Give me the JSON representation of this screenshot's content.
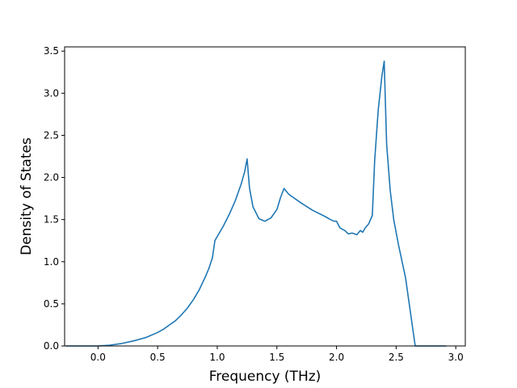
{
  "chart_data": {
    "type": "line",
    "title": "",
    "xlabel": "Frequency (THz)",
    "ylabel": "Density of States",
    "xlim": [
      -0.28,
      3.08
    ],
    "ylim": [
      0.0,
      3.55
    ],
    "grid": false,
    "legend": "none",
    "x_ticks": [
      "0.0",
      "0.5",
      "1.0",
      "1.5",
      "2.0",
      "2.5",
      "3.0"
    ],
    "y_ticks": [
      "0.0",
      "0.5",
      "1.0",
      "1.5",
      "2.0",
      "2.5",
      "3.0",
      "3.5"
    ],
    "series": [
      {
        "color": "#1f77b4",
        "x": [
          -0.27,
          -0.2,
          -0.1,
          0.0,
          0.1,
          0.2,
          0.3,
          0.4,
          0.5,
          0.55,
          0.6,
          0.65,
          0.7,
          0.75,
          0.8,
          0.85,
          0.9,
          0.93,
          0.96,
          0.98,
          1.0,
          1.05,
          1.1,
          1.15,
          1.2,
          1.23,
          1.25,
          1.27,
          1.3,
          1.35,
          1.4,
          1.45,
          1.5,
          1.53,
          1.56,
          1.6,
          1.7,
          1.8,
          1.9,
          1.95,
          1.98,
          2.0,
          2.03,
          2.07,
          2.1,
          2.13,
          2.17,
          2.2,
          2.22,
          2.24,
          2.27,
          2.3,
          2.32,
          2.35,
          2.38,
          2.4,
          2.42,
          2.45,
          2.48,
          2.52,
          2.55,
          2.58,
          2.6,
          2.62,
          2.64,
          2.66,
          2.7,
          2.8,
          2.92
        ],
        "y": [
          0.0,
          0.0,
          0.0,
          0.0,
          0.01,
          0.03,
          0.06,
          0.1,
          0.16,
          0.2,
          0.25,
          0.3,
          0.37,
          0.45,
          0.55,
          0.67,
          0.82,
          0.92,
          1.05,
          1.25,
          1.3,
          1.42,
          1.56,
          1.72,
          1.92,
          2.07,
          2.22,
          1.88,
          1.65,
          1.51,
          1.48,
          1.52,
          1.62,
          1.76,
          1.87,
          1.8,
          1.7,
          1.61,
          1.54,
          1.5,
          1.48,
          1.48,
          1.4,
          1.37,
          1.33,
          1.34,
          1.32,
          1.37,
          1.35,
          1.4,
          1.45,
          1.55,
          2.2,
          2.8,
          3.2,
          3.38,
          2.4,
          1.85,
          1.5,
          1.2,
          1.0,
          0.8,
          0.6,
          0.4,
          0.2,
          0.0,
          0.0,
          0.0,
          0.0
        ]
      }
    ]
  }
}
